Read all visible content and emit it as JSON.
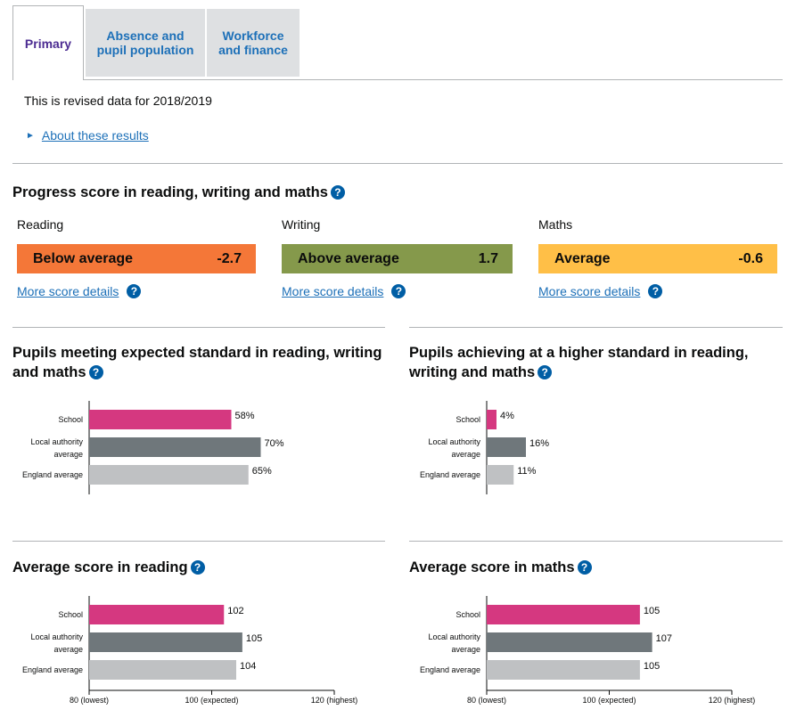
{
  "tabs": [
    {
      "label_line1": "Primary",
      "label_line2": "",
      "active": true
    },
    {
      "label_line1": "Absence and",
      "label_line2": "pupil population",
      "active": false
    },
    {
      "label_line1": "Workforce",
      "label_line2": "and finance",
      "active": false
    }
  ],
  "revised_text": "This is revised data for 2018/2019",
  "about_link": "About these results",
  "help_glyph": "?",
  "progress": {
    "title": "Progress score in reading, writing and maths",
    "items": [
      {
        "subject": "Reading",
        "band": "Below average",
        "score": "-2.7",
        "color": "#f47738",
        "more": "More score details"
      },
      {
        "subject": "Writing",
        "band": "Above average",
        "score": "1.7",
        "color": "#85994b",
        "more": "More score details"
      },
      {
        "subject": "Maths",
        "band": "Average",
        "score": "-0.6",
        "color": "#ffbf47",
        "more": "More score details"
      }
    ]
  },
  "colors": {
    "school": "#d53880",
    "local": "#6f777b",
    "england": "#bfc1c3",
    "link": "#1d70b8"
  },
  "expected_title_l1": "Pupils meeting expected standard in reading, writing",
  "expected_title_l2": "and maths",
  "higher_title_l1": "Pupils achieving at a higher standard in reading,",
  "higher_title_l2": "writing and maths",
  "reading_title": "Average score in reading",
  "maths_title": "Average score in maths",
  "chart_data": [
    {
      "type": "bar",
      "orientation": "horizontal",
      "title": "Pupils meeting expected standard in reading, writing and maths",
      "categories": [
        [
          "School"
        ],
        [
          "Local authority",
          "average"
        ],
        [
          "England average"
        ]
      ],
      "values": [
        58,
        70,
        65
      ],
      "value_labels": [
        "58%",
        "70%",
        "65%"
      ],
      "xlim": [
        0,
        100
      ],
      "ticks": []
    },
    {
      "type": "bar",
      "orientation": "horizontal",
      "title": "Pupils achieving at a higher standard in reading, writing and maths",
      "categories": [
        [
          "School"
        ],
        [
          "Local authority",
          "average"
        ],
        [
          "England average"
        ]
      ],
      "values": [
        4,
        16,
        11
      ],
      "value_labels": [
        "4%",
        "16%",
        "11%"
      ],
      "xlim": [
        0,
        100
      ],
      "ticks": []
    },
    {
      "type": "bar",
      "orientation": "horizontal",
      "title": "Average score in reading",
      "categories": [
        [
          "School"
        ],
        [
          "Local authority",
          "average"
        ],
        [
          "England average"
        ]
      ],
      "values": [
        102,
        105,
        104
      ],
      "value_labels": [
        "102",
        "105",
        "104"
      ],
      "xlim": [
        80,
        120
      ],
      "ticks": [
        {
          "value": 80,
          "label": "80 (lowest)"
        },
        {
          "value": 100,
          "label": "100 (expected)"
        },
        {
          "value": 120,
          "label": "120 (highest)"
        }
      ]
    },
    {
      "type": "bar",
      "orientation": "horizontal",
      "title": "Average score in maths",
      "categories": [
        [
          "School"
        ],
        [
          "Local authority",
          "average"
        ],
        [
          "England average"
        ]
      ],
      "values": [
        105,
        107,
        105
      ],
      "value_labels": [
        "105",
        "107",
        "105"
      ],
      "xlim": [
        80,
        120
      ],
      "ticks": [
        {
          "value": 80,
          "label": "80 (lowest)"
        },
        {
          "value": 100,
          "label": "100 (expected)"
        },
        {
          "value": 120,
          "label": "120 (highest)"
        }
      ]
    }
  ]
}
